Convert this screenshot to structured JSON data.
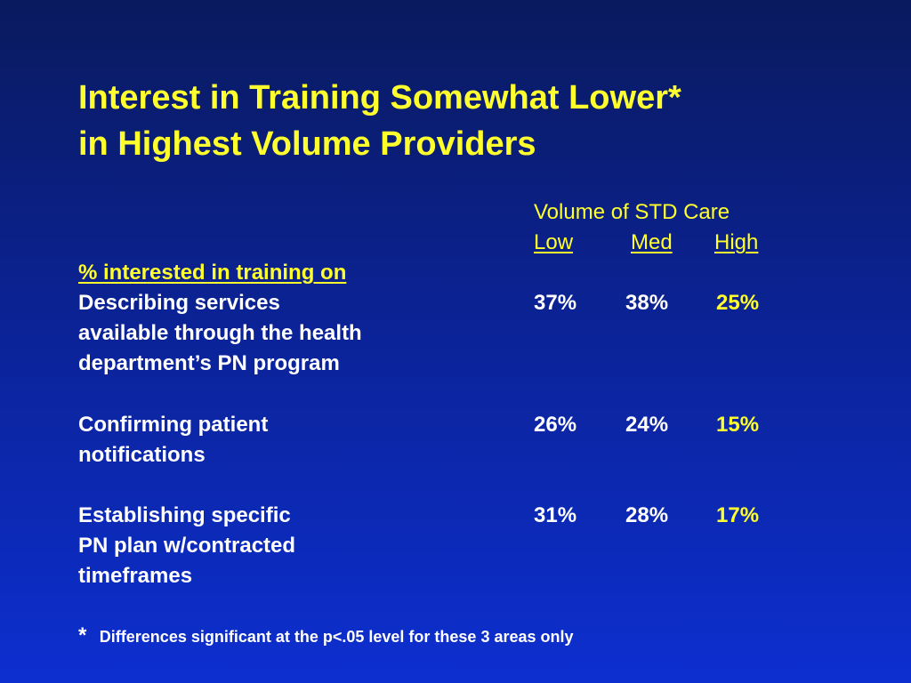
{
  "slide": {
    "title_line1": "Interest in Training Somewhat Lower*",
    "title_line2": "in Highest Volume Providers"
  },
  "table": {
    "group_header": "Volume of STD Care",
    "columns": [
      "Low",
      "Med",
      "High"
    ],
    "section_label": "% interested in training on",
    "rows": [
      {
        "label_lines": [
          "Describing services",
          "available through the health",
          "department’s PN program"
        ],
        "values": [
          "37%",
          "38%",
          "25%"
        ]
      },
      {
        "label_lines": [
          "Confirming patient",
          "notifications"
        ],
        "values": [
          "26%",
          "24%",
          "15%"
        ]
      },
      {
        "label_lines": [
          "Establishing specific",
          "PN plan w/contracted",
          "timeframes"
        ],
        "values": [
          "31%",
          "28%",
          "17%"
        ]
      }
    ]
  },
  "footnote": {
    "marker": "*",
    "text": "Differences significant at the p<.05 level for these 3 areas only"
  },
  "colors": {
    "background_top": "#0a1a5e",
    "background_bottom": "#0d2fd0",
    "accent_yellow": "#ffff2e",
    "text_white": "#ffffff"
  }
}
